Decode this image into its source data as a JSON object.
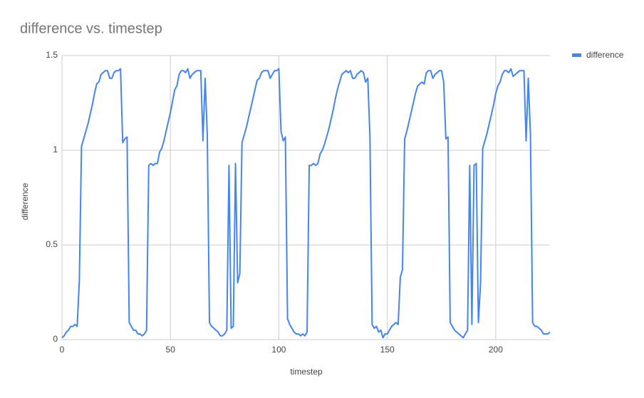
{
  "chart_data": {
    "type": "line",
    "title": "difference vs. timestep",
    "x_label": "timestep",
    "y_label": "difference",
    "x": [
      0,
      1,
      2,
      3,
      4,
      5,
      6,
      7,
      8,
      9,
      10,
      11,
      12,
      13,
      14,
      15,
      16,
      17,
      18,
      19,
      20,
      21,
      22,
      23,
      24,
      25,
      26,
      27,
      28,
      29,
      30,
      31,
      32,
      33,
      34,
      35,
      36,
      37,
      38,
      39,
      40,
      41,
      42,
      43,
      44,
      45,
      46,
      47,
      48,
      49,
      50,
      51,
      52,
      53,
      54,
      55,
      56,
      57,
      58,
      59,
      60,
      61,
      62,
      63,
      64,
      65,
      66,
      67,
      68,
      69,
      70,
      71,
      72,
      73,
      74,
      75,
      76,
      77,
      78,
      79,
      80,
      81,
      82,
      83,
      84,
      85,
      86,
      87,
      88,
      89,
      90,
      91,
      92,
      93,
      94,
      95,
      96,
      97,
      98,
      99,
      100,
      101,
      102,
      103,
      104,
      105,
      106,
      107,
      108,
      109,
      110,
      111,
      112,
      113,
      114,
      115,
      116,
      117,
      118,
      119,
      120,
      121,
      122,
      123,
      124,
      125,
      126,
      127,
      128,
      129,
      130,
      131,
      132,
      133,
      134,
      135,
      136,
      137,
      138,
      139,
      140,
      141,
      142,
      143,
      144,
      145,
      146,
      147,
      148,
      149,
      150,
      151,
      152,
      153,
      154,
      155,
      156,
      157,
      158,
      159,
      160,
      161,
      162,
      163,
      164,
      165,
      166,
      167,
      168,
      169,
      170,
      171,
      172,
      173,
      174,
      175,
      176,
      177,
      178,
      179,
      180,
      181,
      182,
      183,
      184,
      185,
      186,
      187,
      188,
      189,
      190,
      191,
      192,
      193,
      194,
      195,
      196,
      197,
      198,
      199,
      200,
      201,
      202,
      203,
      204,
      205,
      206,
      207,
      208,
      209,
      210,
      211,
      212,
      213,
      214,
      215,
      216,
      217,
      218,
      219,
      220,
      221,
      222,
      223,
      224,
      225
    ],
    "series": [
      {
        "name": "difference",
        "color": "#4285f4",
        "values": [
          0.01,
          0.02,
          0.04,
          0.05,
          0.07,
          0.07,
          0.08,
          0.07,
          0.31,
          1.02,
          1.06,
          1.1,
          1.14,
          1.19,
          1.24,
          1.3,
          1.35,
          1.36,
          1.4,
          1.41,
          1.42,
          1.42,
          1.38,
          1.38,
          1.41,
          1.42,
          1.42,
          1.43,
          1.04,
          1.06,
          1.07,
          0.09,
          0.07,
          0.05,
          0.05,
          0.03,
          0.03,
          0.02,
          0.03,
          0.05,
          0.92,
          0.93,
          0.92,
          0.93,
          0.93,
          0.99,
          1.01,
          1.05,
          1.1,
          1.15,
          1.2,
          1.26,
          1.32,
          1.34,
          1.4,
          1.42,
          1.42,
          1.41,
          1.43,
          1.38,
          1.4,
          1.41,
          1.42,
          1.42,
          1.42,
          1.05,
          1.38,
          1.08,
          0.09,
          0.07,
          0.06,
          0.05,
          0.04,
          0.02,
          0.02,
          0.03,
          0.05,
          0.92,
          0.06,
          0.07,
          0.93,
          0.3,
          0.35,
          1.04,
          1.08,
          1.12,
          1.17,
          1.22,
          1.27,
          1.32,
          1.37,
          1.38,
          1.41,
          1.42,
          1.42,
          1.42,
          1.38,
          1.4,
          1.42,
          1.42,
          1.43,
          1.1,
          1.05,
          1.07,
          0.11,
          0.08,
          0.06,
          0.04,
          0.03,
          0.03,
          0.02,
          0.03,
          0.02,
          0.04,
          0.92,
          0.92,
          0.93,
          0.92,
          0.93,
          0.98,
          1.0,
          1.03,
          1.07,
          1.11,
          1.16,
          1.21,
          1.27,
          1.32,
          1.36,
          1.4,
          1.41,
          1.42,
          1.41,
          1.42,
          1.38,
          1.38,
          1.4,
          1.41,
          1.42,
          1.41,
          1.36,
          1.38,
          1.07,
          0.08,
          0.06,
          0.07,
          0.04,
          0.05,
          0.01,
          0.03,
          0.03,
          0.05,
          0.07,
          0.08,
          0.09,
          0.08,
          0.33,
          0.37,
          1.06,
          1.1,
          1.15,
          1.2,
          1.25,
          1.3,
          1.34,
          1.35,
          1.36,
          1.35,
          1.41,
          1.42,
          1.42,
          1.38,
          1.4,
          1.41,
          1.42,
          1.42,
          1.36,
          1.06,
          1.07,
          0.09,
          0.07,
          0.05,
          0.04,
          0.03,
          0.02,
          0.01,
          0.03,
          0.05,
          0.92,
          0.08,
          0.92,
          0.93,
          0.09,
          0.3,
          1.01,
          1.05,
          1.09,
          1.14,
          1.19,
          1.24,
          1.3,
          1.34,
          1.36,
          1.4,
          1.42,
          1.42,
          1.41,
          1.43,
          1.39,
          1.4,
          1.41,
          1.42,
          1.42,
          1.42,
          1.05,
          1.38,
          1.08,
          0.09,
          0.07,
          0.07,
          0.06,
          0.05,
          0.03,
          0.03,
          0.03,
          0.04
        ]
      }
    ],
    "xlim": [
      0,
      225
    ],
    "xticks": [
      0,
      50,
      100,
      150,
      200
    ],
    "ylim": [
      0,
      1.5
    ],
    "yticks": [
      0,
      0.5,
      1,
      1.5
    ],
    "grid": true,
    "legend": "right"
  }
}
